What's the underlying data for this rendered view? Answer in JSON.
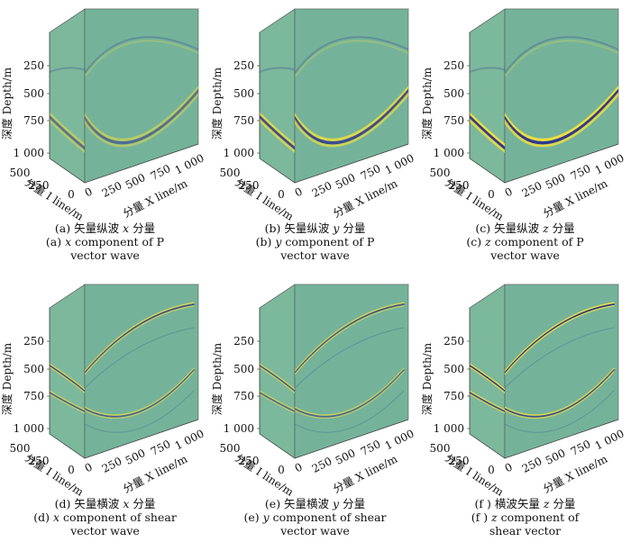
{
  "axes": {
    "depth_label": "深度 Depth/m",
    "inline_label": "分量 I line/m",
    "xline_label": "分量 X line/m",
    "depth_ticks": [
      "250",
      "500",
      "750",
      "1 000"
    ],
    "inline_ticks": [
      "500",
      "250",
      "0"
    ],
    "xline_ticks": [
      "0",
      "250",
      "500",
      "750",
      "1 000"
    ]
  },
  "colors": {
    "background": "#74b39a",
    "top_face": "#86bd9e",
    "side_face": "#7cb89c",
    "peak": "#f2e23a",
    "trough": "#2a2a8a"
  },
  "panels": [
    {
      "cap_a": "(a) 矢量纵波",
      "cap_var": "x",
      "cap_b": "分量",
      "en_var": "x",
      "en_rest": " component of P",
      "en_line2": "vector wave",
      "wavefield": "P-wave x component"
    },
    {
      "cap_a": "(b) 矢量纵波",
      "cap_var": "y",
      "cap_b": "分量",
      "en_var": "y",
      "en_rest": " component of P",
      "en_line2": "vector wave",
      "wavefield": "P-wave y component"
    },
    {
      "cap_a": "(c) 矢量纵波",
      "cap_var": "z",
      "cap_b": "分量",
      "en_var": "z",
      "en_rest": " component of P",
      "en_line2": "vector wave",
      "wavefield": "P-wave z component"
    },
    {
      "cap_a": "(d) 矢量横波",
      "cap_var": "x",
      "cap_b": "分量",
      "en_var": "x",
      "en_rest": " component of shear",
      "en_line2": "vector wave",
      "wavefield": "S-wave x component"
    },
    {
      "cap_a": "(e) 矢量横波",
      "cap_var": "y",
      "cap_b": "分量",
      "en_var": "y",
      "en_rest": " component of shear",
      "en_line2": "vector wave",
      "wavefield": "S-wave y component"
    },
    {
      "cap_a": "(f ) 横波矢量",
      "cap_var": "z",
      "cap_b": "分量",
      "en_var": "z",
      "en_rest": " component of",
      "en_line2": "shear vector",
      "wavefield": "S-wave z component"
    }
  ]
}
